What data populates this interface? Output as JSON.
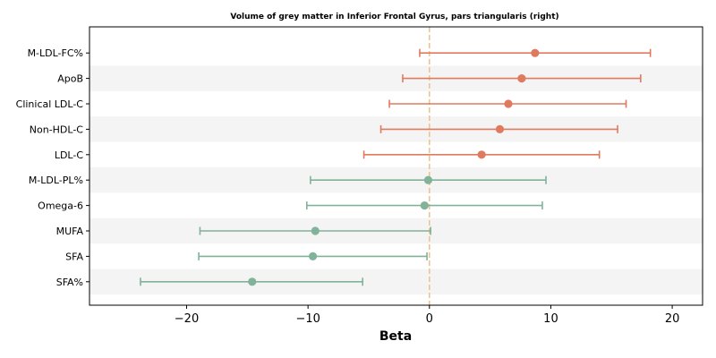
{
  "chart_data": {
    "type": "forest",
    "title": "Volume of grey matter in Inferior Frontal Gyrus, pars triangularis (right)",
    "xlabel": "Beta",
    "xlim": [
      -28.0,
      22.5
    ],
    "xticks": [
      -20,
      -10,
      0,
      10,
      20
    ],
    "xtick_labels": [
      "−20",
      "−10",
      "0",
      "10",
      "20"
    ],
    "reference_line": 0,
    "positive_color": "#e07a5f",
    "negative_color": "#81b29a",
    "reference_color": "#f2c38f",
    "band_color": "#f4f4f4",
    "points": [
      {
        "label": "M-LDL-FC%",
        "beta": 8.7,
        "ci_low": -0.8,
        "ci_high": 18.2
      },
      {
        "label": "ApoB",
        "beta": 7.6,
        "ci_low": -2.2,
        "ci_high": 17.4
      },
      {
        "label": "Clinical LDL-C",
        "beta": 6.5,
        "ci_low": -3.3,
        "ci_high": 16.2
      },
      {
        "label": "Non-HDL-C",
        "beta": 5.8,
        "ci_low": -4.0,
        "ci_high": 15.5
      },
      {
        "label": "LDL-C",
        "beta": 4.3,
        "ci_low": -5.4,
        "ci_high": 14.0
      },
      {
        "label": "M-LDL-PL%",
        "beta": -0.1,
        "ci_low": -9.8,
        "ci_high": 9.6
      },
      {
        "label": "Omega-6",
        "beta": -0.4,
        "ci_low": -10.1,
        "ci_high": 9.3
      },
      {
        "label": "MUFA",
        "beta": -9.4,
        "ci_low": -18.9,
        "ci_high": 0.1
      },
      {
        "label": "SFA",
        "beta": -9.6,
        "ci_low": -19.0,
        "ci_high": -0.2
      },
      {
        "label": "SFA%",
        "beta": -14.6,
        "ci_low": -23.8,
        "ci_high": -5.5
      }
    ]
  }
}
